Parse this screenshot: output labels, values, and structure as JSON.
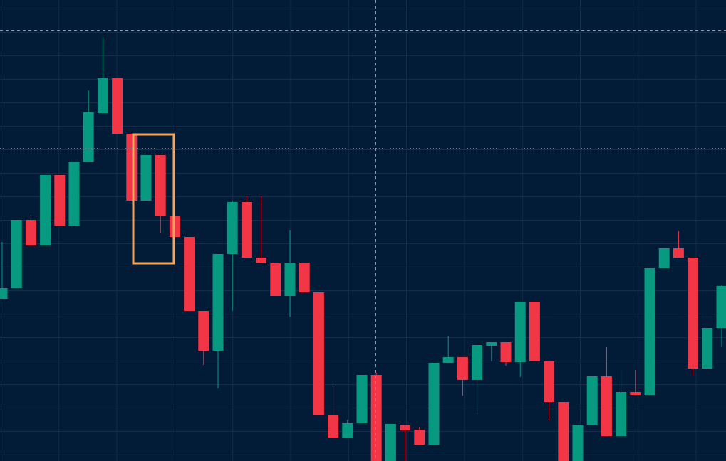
{
  "chart_data": {
    "type": "candlestick",
    "up_color": "#089981",
    "down_color": "#f23645",
    "grid": true,
    "ylim": [
      0,
      648
    ],
    "open": [
      228,
      243,
      339,
      303,
      402,
      331,
      420,
      489,
      538,
      460,
      366,
      430,
      344,
      315,
      211,
      155,
      291,
      364,
      286,
      278,
      232,
      279,
      237,
      64,
      33,
      53,
      121,
      0,
      51,
      44,
      23,
      138,
      146,
      114,
      162,
      167,
      139,
      224,
      140,
      83,
      0,
      51,
      119,
      35,
      97,
      93,
      271,
      299,
      286,
      130,
      187
    ],
    "high": [
      308,
      339,
      346,
      402,
      402,
      420,
      521,
      596,
      538,
      460,
      430,
      430,
      344,
      315,
      211,
      291,
      366,
      373,
      372,
      278,
      324,
      279,
      237,
      105,
      58,
      121,
      124,
      52,
      51,
      48,
      138,
      176,
      146,
      163,
      167,
      167,
      224,
      224,
      140,
      83,
      51,
      119,
      160,
      128,
      128,
      271,
      299,
      323,
      286,
      187,
      248
    ],
    "low": [
      228,
      243,
      303,
      303,
      331,
      331,
      420,
      489,
      460,
      366,
      366,
      320,
      315,
      211,
      135,
      102,
      211,
      286,
      278,
      232,
      203,
      237,
      64,
      33,
      33,
      53,
      0,
      0,
      0,
      23,
      23,
      138,
      92,
      66,
      140,
      134,
      118,
      140,
      57,
      0,
      0,
      51,
      35,
      35,
      93,
      93,
      271,
      286,
      120,
      130,
      160
    ],
    "close": [
      243,
      339,
      303,
      402,
      331,
      420,
      490,
      538,
      460,
      366,
      430,
      344,
      315,
      211,
      155,
      291,
      364,
      286,
      278,
      232,
      279,
      237,
      64,
      33,
      53,
      121,
      0,
      52,
      43,
      23,
      138,
      146,
      114,
      163,
      167,
      139,
      224,
      140,
      83,
      0,
      51,
      119,
      35,
      97,
      93,
      271,
      299,
      286,
      130,
      187,
      246
    ]
  }
}
